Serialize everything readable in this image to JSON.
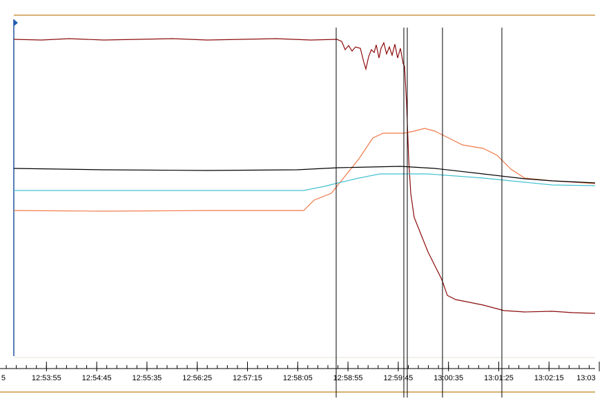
{
  "time_axis": {
    "tick_labels": [
      "5",
      "12:53:55",
      "12:54:45",
      "12:55:35",
      "12:56:25",
      "12:57:15",
      "12:58:05",
      "12:58:55",
      "12:59:45",
      "13:00:35",
      "13:01:25",
      "13:02:15",
      "13:03"
    ]
  }
}
